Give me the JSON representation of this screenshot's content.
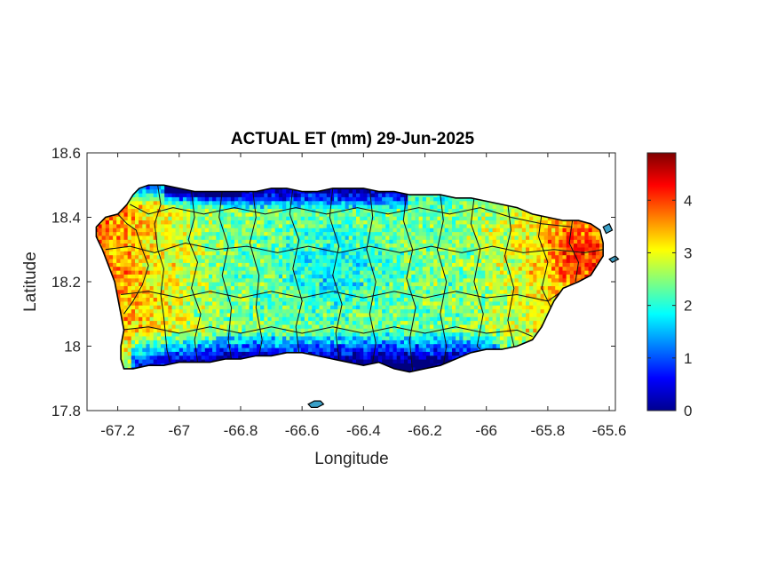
{
  "title": "ACTUAL ET (mm) 29-Jun-2025",
  "xlabel": "Longitude",
  "ylabel": "Latitude",
  "x_ticks": [
    {
      "value": -67.2,
      "label": "-67.2"
    },
    {
      "value": -67.0,
      "label": "-67"
    },
    {
      "value": -66.8,
      "label": "-66.8"
    },
    {
      "value": -66.6,
      "label": "-66.6"
    },
    {
      "value": -66.4,
      "label": "-66.4"
    },
    {
      "value": -66.2,
      "label": "-66.2"
    },
    {
      "value": -66.0,
      "label": "-66"
    },
    {
      "value": -65.8,
      "label": "-65.8"
    },
    {
      "value": -65.6,
      "label": "-65.6"
    }
  ],
  "y_ticks": [
    {
      "value": 18.6,
      "label": "18.6"
    },
    {
      "value": 18.4,
      "label": "18.4"
    },
    {
      "value": 18.2,
      "label": "18.2"
    },
    {
      "value": 18.0,
      "label": "18"
    },
    {
      "value": 17.8,
      "label": "17.8"
    }
  ],
  "colorbar": {
    "colormap": "jet",
    "range": [
      0,
      4.9
    ],
    "ticks": [
      {
        "value": 0,
        "label": "0"
      },
      {
        "value": 1,
        "label": "1"
      },
      {
        "value": 2,
        "label": "2"
      },
      {
        "value": 3,
        "label": "3"
      },
      {
        "value": 4,
        "label": "4"
      }
    ]
  },
  "map": {
    "region": "Puerto Rico",
    "xlim": [
      -67.3,
      -65.58
    ],
    "ylim": [
      17.8,
      18.6
    ],
    "outline_color": "#000000",
    "outline": [
      [
        -67.27,
        18.37
      ],
      [
        -67.24,
        18.4
      ],
      [
        -67.2,
        18.41
      ],
      [
        -67.17,
        18.44
      ],
      [
        -67.15,
        18.47
      ],
      [
        -67.13,
        18.49
      ],
      [
        -67.1,
        18.5
      ],
      [
        -67.05,
        18.5
      ],
      [
        -67.0,
        18.49
      ],
      [
        -66.95,
        18.48
      ],
      [
        -66.9,
        18.48
      ],
      [
        -66.85,
        18.48
      ],
      [
        -66.8,
        18.48
      ],
      [
        -66.75,
        18.48
      ],
      [
        -66.7,
        18.49
      ],
      [
        -66.65,
        18.49
      ],
      [
        -66.6,
        18.48
      ],
      [
        -66.55,
        18.48
      ],
      [
        -66.5,
        18.49
      ],
      [
        -66.45,
        18.49
      ],
      [
        -66.4,
        18.49
      ],
      [
        -66.35,
        18.48
      ],
      [
        -66.3,
        18.48
      ],
      [
        -66.25,
        18.47
      ],
      [
        -66.2,
        18.47
      ],
      [
        -66.15,
        18.47
      ],
      [
        -66.1,
        18.46
      ],
      [
        -66.05,
        18.46
      ],
      [
        -66.0,
        18.45
      ],
      [
        -65.95,
        18.44
      ],
      [
        -65.9,
        18.43
      ],
      [
        -65.85,
        18.41
      ],
      [
        -65.8,
        18.4
      ],
      [
        -65.75,
        18.39
      ],
      [
        -65.7,
        18.39
      ],
      [
        -65.66,
        18.38
      ],
      [
        -65.63,
        18.36
      ],
      [
        -65.62,
        18.32
      ],
      [
        -65.62,
        18.28
      ],
      [
        -65.64,
        18.25
      ],
      [
        -65.66,
        18.22
      ],
      [
        -65.7,
        18.2
      ],
      [
        -65.75,
        18.18
      ],
      [
        -65.78,
        18.14
      ],
      [
        -65.8,
        18.1
      ],
      [
        -65.82,
        18.06
      ],
      [
        -65.85,
        18.02
      ],
      [
        -65.9,
        18.0
      ],
      [
        -65.95,
        17.99
      ],
      [
        -66.0,
        17.99
      ],
      [
        -66.05,
        17.98
      ],
      [
        -66.1,
        17.96
      ],
      [
        -66.15,
        17.94
      ],
      [
        -66.2,
        17.93
      ],
      [
        -66.25,
        17.92
      ],
      [
        -66.3,
        17.93
      ],
      [
        -66.35,
        17.95
      ],
      [
        -66.4,
        17.94
      ],
      [
        -66.45,
        17.95
      ],
      [
        -66.5,
        17.96
      ],
      [
        -66.55,
        17.97
      ],
      [
        -66.6,
        17.98
      ],
      [
        -66.65,
        17.98
      ],
      [
        -66.7,
        17.97
      ],
      [
        -66.75,
        17.97
      ],
      [
        -66.8,
        17.96
      ],
      [
        -66.85,
        17.96
      ],
      [
        -66.9,
        17.95
      ],
      [
        -66.95,
        17.95
      ],
      [
        -67.0,
        17.95
      ],
      [
        -67.05,
        17.94
      ],
      [
        -67.1,
        17.94
      ],
      [
        -67.15,
        17.93
      ],
      [
        -67.18,
        17.93
      ],
      [
        -67.19,
        17.96
      ],
      [
        -67.19,
        18.0
      ],
      [
        -67.18,
        18.05
      ],
      [
        -67.19,
        18.1
      ],
      [
        -67.2,
        18.15
      ],
      [
        -67.21,
        18.2
      ],
      [
        -67.23,
        18.25
      ],
      [
        -67.25,
        18.3
      ],
      [
        -67.27,
        18.34
      ]
    ],
    "small_islands": [
      [
        [
          -66.58,
          17.82
        ],
        [
          -66.56,
          17.83
        ],
        [
          -66.54,
          17.83
        ],
        [
          -66.53,
          17.82
        ],
        [
          -66.55,
          17.81
        ],
        [
          -66.57,
          17.81
        ]
      ],
      [
        [
          -65.6,
          18.27
        ],
        [
          -65.58,
          18.28
        ],
        [
          -65.57,
          18.27
        ],
        [
          -65.59,
          18.26
        ]
      ],
      [
        [
          -65.62,
          18.37
        ],
        [
          -65.6,
          18.38
        ],
        [
          -65.59,
          18.36
        ],
        [
          -65.61,
          18.35
        ]
      ]
    ],
    "municipal_boundaries": [
      [
        [
          -67.2,
          18.41
        ],
        [
          -67.17,
          18.38
        ],
        [
          -67.14,
          18.36
        ],
        [
          -67.12,
          18.3
        ],
        [
          -67.1,
          18.25
        ],
        [
          -67.12,
          18.19
        ],
        [
          -67.15,
          18.14
        ],
        [
          -67.18,
          18.1
        ]
      ],
      [
        [
          -67.07,
          18.5
        ],
        [
          -67.06,
          18.44
        ],
        [
          -67.08,
          18.38
        ],
        [
          -67.07,
          18.3
        ],
        [
          -67.05,
          18.24
        ],
        [
          -67.06,
          18.16
        ],
        [
          -67.05,
          18.09
        ],
        [
          -67.04,
          17.99
        ],
        [
          -67.03,
          17.95
        ]
      ],
      [
        [
          -66.96,
          18.48
        ],
        [
          -66.95,
          18.4
        ],
        [
          -66.97,
          18.33
        ],
        [
          -66.94,
          18.26
        ],
        [
          -66.96,
          18.18
        ],
        [
          -66.93,
          18.1
        ],
        [
          -66.95,
          18.02
        ],
        [
          -66.94,
          17.95
        ]
      ],
      [
        [
          -66.86,
          18.48
        ],
        [
          -66.87,
          18.4
        ],
        [
          -66.84,
          18.31
        ],
        [
          -66.86,
          18.22
        ],
        [
          -66.83,
          18.12
        ],
        [
          -66.84,
          18.02
        ],
        [
          -66.83,
          17.96
        ]
      ],
      [
        [
          -66.76,
          18.48
        ],
        [
          -66.75,
          18.4
        ],
        [
          -66.77,
          18.32
        ],
        [
          -66.74,
          18.22
        ],
        [
          -66.75,
          18.12
        ],
        [
          -66.73,
          18.02
        ],
        [
          -66.74,
          17.97
        ]
      ],
      [
        [
          -66.63,
          18.49
        ],
        [
          -66.64,
          18.41
        ],
        [
          -66.61,
          18.33
        ],
        [
          -66.63,
          18.24
        ],
        [
          -66.6,
          18.14
        ],
        [
          -66.62,
          18.06
        ],
        [
          -66.61,
          17.98
        ]
      ],
      [
        [
          -66.5,
          18.49
        ],
        [
          -66.51,
          18.4
        ],
        [
          -66.48,
          18.31
        ],
        [
          -66.5,
          18.22
        ],
        [
          -66.47,
          18.13
        ],
        [
          -66.49,
          18.04
        ],
        [
          -66.48,
          17.96
        ]
      ],
      [
        [
          -66.38,
          18.49
        ],
        [
          -66.37,
          18.4
        ],
        [
          -66.39,
          18.3
        ],
        [
          -66.36,
          18.2
        ],
        [
          -66.38,
          18.1
        ],
        [
          -66.36,
          18.01
        ],
        [
          -66.37,
          17.95
        ]
      ],
      [
        [
          -66.26,
          18.47
        ],
        [
          -66.27,
          18.39
        ],
        [
          -66.24,
          18.3
        ],
        [
          -66.26,
          18.21
        ],
        [
          -66.23,
          18.12
        ],
        [
          -66.25,
          18.02
        ],
        [
          -66.24,
          17.92
        ]
      ],
      [
        [
          -66.15,
          18.47
        ],
        [
          -66.14,
          18.39
        ],
        [
          -66.16,
          18.3
        ],
        [
          -66.13,
          18.2
        ],
        [
          -66.15,
          18.1
        ],
        [
          -66.13,
          18.0
        ],
        [
          -66.14,
          17.94
        ]
      ],
      [
        [
          -66.04,
          18.46
        ],
        [
          -66.05,
          18.38
        ],
        [
          -66.02,
          18.3
        ],
        [
          -66.04,
          18.2
        ],
        [
          -66.01,
          18.1
        ],
        [
          -66.03,
          18.0
        ],
        [
          -66.02,
          17.99
        ]
      ],
      [
        [
          -65.93,
          18.44
        ],
        [
          -65.92,
          18.36
        ],
        [
          -65.94,
          18.28
        ],
        [
          -65.91,
          18.18
        ],
        [
          -65.93,
          18.08
        ],
        [
          -65.91,
          18.0
        ]
      ],
      [
        [
          -65.82,
          18.41
        ],
        [
          -65.83,
          18.34
        ],
        [
          -65.8,
          18.26
        ],
        [
          -65.82,
          18.18
        ],
        [
          -65.79,
          18.12
        ]
      ],
      [
        [
          -65.72,
          18.39
        ],
        [
          -65.73,
          18.32
        ],
        [
          -65.7,
          18.26
        ],
        [
          -65.71,
          18.2
        ]
      ],
      [
        [
          -67.24,
          18.3
        ],
        [
          -67.16,
          18.31
        ],
        [
          -67.08,
          18.29
        ],
        [
          -66.98,
          18.32
        ],
        [
          -66.88,
          18.3
        ],
        [
          -66.78,
          18.31
        ],
        [
          -66.68,
          18.29
        ],
        [
          -66.58,
          18.31
        ],
        [
          -66.48,
          18.29
        ],
        [
          -66.38,
          18.31
        ],
        [
          -66.28,
          18.29
        ],
        [
          -66.18,
          18.31
        ],
        [
          -66.08,
          18.29
        ],
        [
          -65.98,
          18.31
        ],
        [
          -65.88,
          18.29
        ],
        [
          -65.78,
          18.3
        ],
        [
          -65.68,
          18.29
        ],
        [
          -65.62,
          18.3
        ]
      ],
      [
        [
          -67.19,
          18.16
        ],
        [
          -67.1,
          18.17
        ],
        [
          -67.0,
          18.15
        ],
        [
          -66.9,
          18.17
        ],
        [
          -66.8,
          18.15
        ],
        [
          -66.7,
          18.17
        ],
        [
          -66.6,
          18.15
        ],
        [
          -66.5,
          18.17
        ],
        [
          -66.4,
          18.15
        ],
        [
          -66.3,
          18.17
        ],
        [
          -66.2,
          18.15
        ],
        [
          -66.1,
          18.17
        ],
        [
          -66.0,
          18.15
        ],
        [
          -65.9,
          18.16
        ],
        [
          -65.8,
          18.14
        ],
        [
          -65.74,
          18.18
        ]
      ],
      [
        [
          -67.19,
          18.05
        ],
        [
          -67.1,
          18.06
        ],
        [
          -67.0,
          18.04
        ],
        [
          -66.9,
          18.06
        ],
        [
          -66.8,
          18.04
        ],
        [
          -66.7,
          18.06
        ],
        [
          -66.6,
          18.04
        ],
        [
          -66.5,
          18.06
        ],
        [
          -66.4,
          18.04
        ],
        [
          -66.3,
          18.06
        ],
        [
          -66.2,
          18.04
        ],
        [
          -66.1,
          18.06
        ],
        [
          -66.0,
          18.04
        ],
        [
          -65.9,
          18.05
        ],
        [
          -65.85,
          18.03
        ]
      ],
      [
        [
          -67.16,
          18.44
        ],
        [
          -67.1,
          18.41
        ],
        [
          -67.02,
          18.43
        ],
        [
          -66.92,
          18.41
        ],
        [
          -66.82,
          18.43
        ],
        [
          -66.72,
          18.41
        ],
        [
          -66.62,
          18.43
        ],
        [
          -66.52,
          18.41
        ],
        [
          -66.42,
          18.43
        ],
        [
          -66.32,
          18.41
        ],
        [
          -66.22,
          18.43
        ],
        [
          -66.12,
          18.41
        ],
        [
          -66.02,
          18.43
        ],
        [
          -65.92,
          18.4
        ],
        [
          -65.82,
          18.38
        ],
        [
          -65.72,
          18.37
        ]
      ]
    ]
  }
}
